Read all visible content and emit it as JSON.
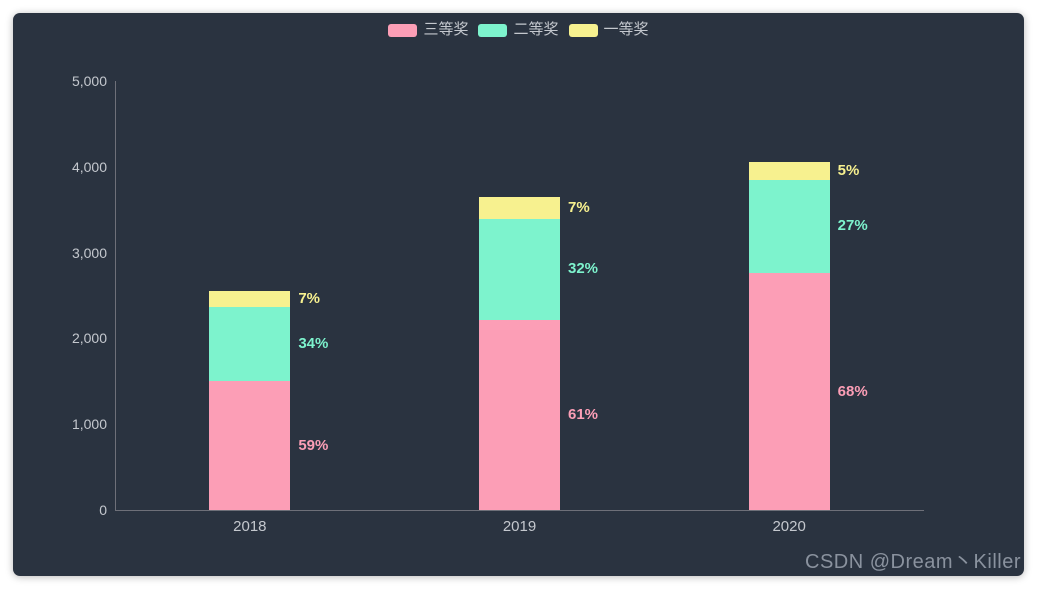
{
  "watermark": "CSDN @Dream丶Killer",
  "colors": {
    "panel_background": "#2a3340",
    "page_background": "#ffffff",
    "axis_line": "#6e7079",
    "axis_label_text": "#c4c8ce",
    "legend_text": "#c4c8ce",
    "watermark_text": "#8a929e"
  },
  "chart_data": {
    "type": "bar",
    "stacked": true,
    "title": "",
    "xlabel": "",
    "ylabel": "",
    "categories": [
      "2018",
      "2019",
      "2020"
    ],
    "series": [
      {
        "name": "三等奖",
        "color": "#fc9eb6",
        "values": [
          1500,
          2220,
          2760
        ],
        "percent_labels": [
          "59%",
          "61%",
          "68%"
        ]
      },
      {
        "name": "二等奖",
        "color": "#7df3cd",
        "values": [
          870,
          1170,
          1090
        ],
        "percent_labels": [
          "34%",
          "32%",
          "27%"
        ]
      },
      {
        "name": "一等奖",
        "color": "#f7f18f",
        "values": [
          180,
          255,
          205
        ],
        "percent_labels": [
          "7%",
          "7%",
          "5%"
        ]
      }
    ],
    "totals": [
      2550,
      3645,
      4055
    ],
    "ylim": [
      0,
      5000
    ],
    "ytick_values": [
      0,
      1000,
      2000,
      3000,
      4000,
      5000
    ],
    "ytick_labels": [
      "0",
      "1,000",
      "2,000",
      "3,000",
      "4,000",
      "5,000"
    ],
    "legend_position": "top-center",
    "grid_lines": false,
    "label_position": "right-of-segment"
  }
}
